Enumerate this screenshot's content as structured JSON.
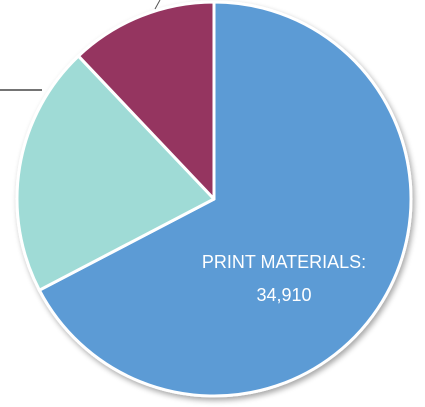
{
  "chart_data": {
    "type": "pie",
    "slices": [
      {
        "label": "PRINT MATERIALS:",
        "value": 34910,
        "value_text": "34,910",
        "color": "#5b9bd5"
      },
      {
        "label": "",
        "value": 10670,
        "value_text": "",
        "color": "#9fdbd6"
      },
      {
        "label": "",
        "value": 6260,
        "value_text": "",
        "color": "#953561"
      }
    ],
    "start_angle_deg": 0,
    "direction": "clockwise",
    "edge_color": "#ffffff",
    "legend": "none"
  }
}
